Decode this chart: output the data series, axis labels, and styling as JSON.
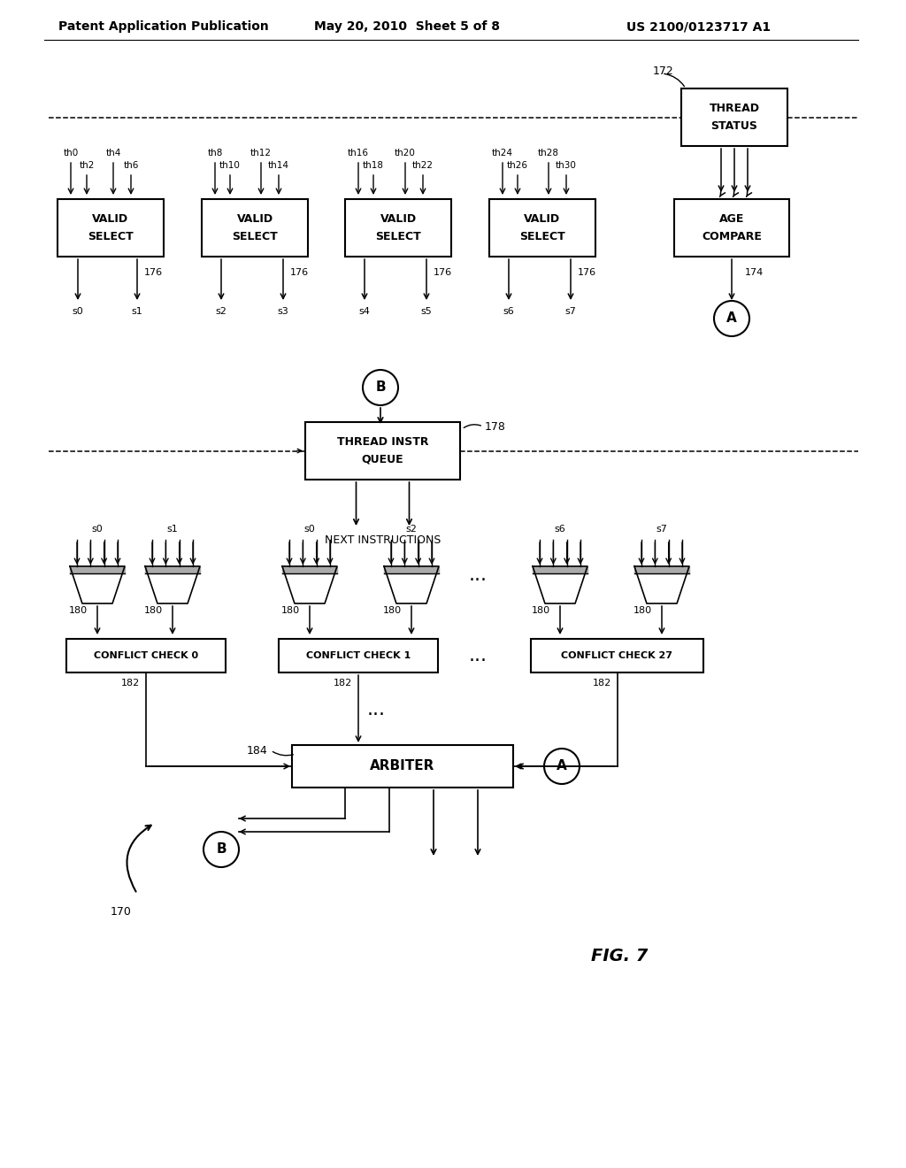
{
  "title_left": "Patent Application Publication",
  "title_center": "May 20, 2010  Sheet 5 of 8",
  "title_right": "US 2100/0123717 A1",
  "fig_label": "FIG. 7",
  "background_color": "#ffffff",
  "line_color": "#000000"
}
